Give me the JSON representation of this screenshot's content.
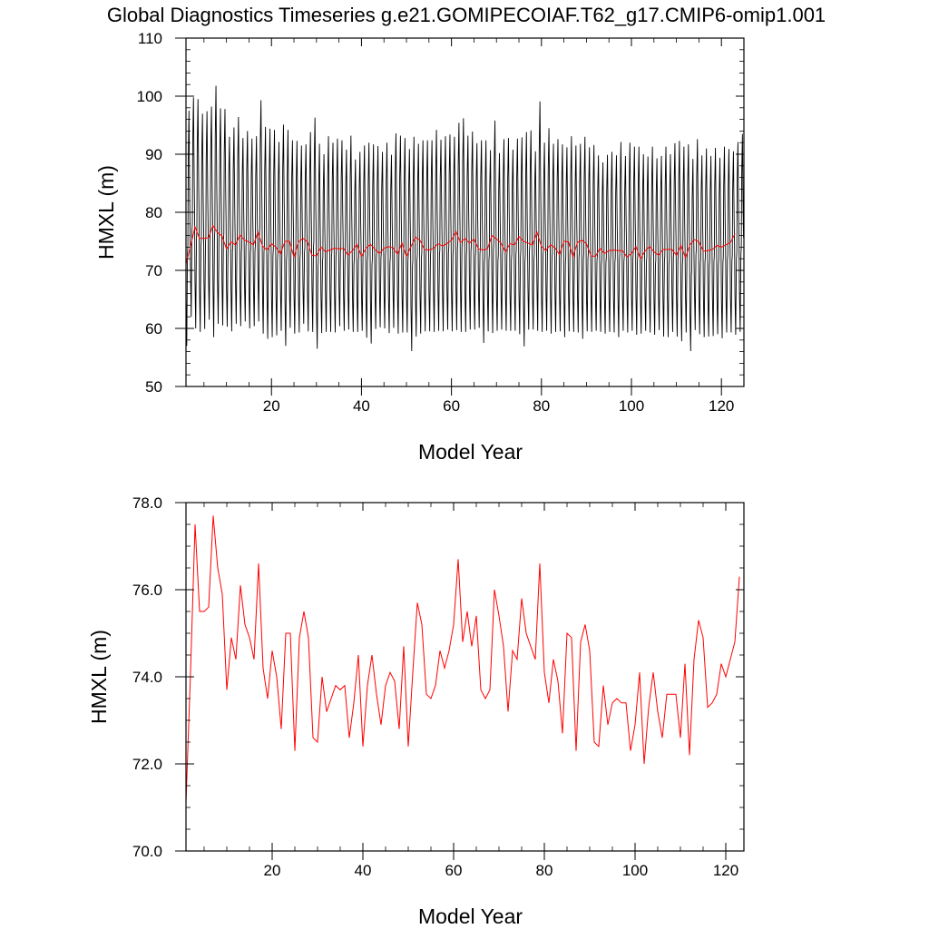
{
  "figure_title": "Global Diagnostics Timeseries g.e21.GOMIPECOIAF.T62_g17.CMIP6-omip1.001",
  "colors": {
    "monthly": "#000000",
    "annual": "#ff0000",
    "axes": "#000000",
    "background": "#ffffff"
  },
  "chart_data": [
    {
      "type": "line",
      "xlabel": "Model Year",
      "ylabel": "HMXL (m)",
      "xlim": [
        1,
        125
      ],
      "ylim": [
        50,
        110
      ],
      "xticks": [
        20,
        40,
        60,
        80,
        100,
        120
      ],
      "yticks": [
        50,
        60,
        70,
        80,
        90,
        100,
        110
      ],
      "ytick_labels": [
        "50",
        "60",
        "70",
        "80",
        "90",
        "100",
        "110"
      ],
      "grid": false,
      "series": [
        {
          "kind": "monthly",
          "color": "#000000",
          "note_resolution": "12 values per year, 124 years",
          "annual_max": [
            97.5,
            99.8,
            99.5,
            97.0,
            97.4,
            98.2,
            101.8,
            97.9,
            97.8,
            93.0,
            94.6,
            96.4,
            92.8,
            94.0,
            92.7,
            93.1,
            99.3,
            94.7,
            94.4,
            94.2,
            92.1,
            95.1,
            94.2,
            92.4,
            92.3,
            91.5,
            91.7,
            93.8,
            96.3,
            91.8,
            90.0,
            93.1,
            92.0,
            92.7,
            92.4,
            90.8,
            93.2,
            89.1,
            90.4,
            91.5,
            92.0,
            91.7,
            91.4,
            90.4,
            92.0,
            89.9,
            93.6,
            93.2,
            92.8,
            90.9,
            93.0,
            91.8,
            92.4,
            92.4,
            92.4,
            94.2,
            92.5,
            93.1,
            93.4,
            93.0,
            95.4,
            96.2,
            93.2,
            93.9,
            91.9,
            92.4,
            92.4,
            90.7,
            95.8,
            90.2,
            92.6,
            92.8,
            90.8,
            92.7,
            92.9,
            93.8,
            94.1,
            90.5,
            99.1,
            92.0,
            94.5,
            91.8,
            92.6,
            91.7,
            91.2,
            93.1,
            91.5,
            91.8,
            93.0,
            91.2,
            91.6,
            89.8,
            88.6,
            89.9,
            90.4,
            89.8,
            92.1,
            89.7,
            92.0,
            91.3,
            91.3,
            90.0,
            89.6,
            91.3,
            89.3,
            89.7,
            91.3,
            90.0,
            91.9,
            92.3,
            91.3,
            91.7,
            89.2,
            92.6,
            89.8,
            91.0,
            89.7,
            91.1,
            89.4,
            91.3,
            90.9,
            90.5,
            92.1,
            93.5
          ],
          "annual_min": [
            57.0,
            62.0,
            60.0,
            59.4,
            59.9,
            61.5,
            58.5,
            60.8,
            60.5,
            60.3,
            59.5,
            60.8,
            60.4,
            61.2,
            60.0,
            60.4,
            61.2,
            59.1,
            58.2,
            58.5,
            58.8,
            59.6,
            57.0,
            60.1,
            59.1,
            59.3,
            60.8,
            59.5,
            59.4,
            56.5,
            59.2,
            59.4,
            59.4,
            59.3,
            60.4,
            59.6,
            59.8,
            59.4,
            59.4,
            59.6,
            58.4,
            57.4,
            59.9,
            60.2,
            60.0,
            59.2,
            60.1,
            59.1,
            59.3,
            59.3,
            56.1,
            58.6,
            59.1,
            59.5,
            59.5,
            59.4,
            59.6,
            59.5,
            59.8,
            59.5,
            59.7,
            59.4,
            59.4,
            59.8,
            59.8,
            60.1,
            57.5,
            59.5,
            59.2,
            59.6,
            59.8,
            59.6,
            59.6,
            59.6,
            59.0,
            56.9,
            59.8,
            59.8,
            59.6,
            59.4,
            59.6,
            59.1,
            59.4,
            59.5,
            58.5,
            59.5,
            59.4,
            59.3,
            58.2,
            59.5,
            59.4,
            59.6,
            59.4,
            59.1,
            59.4,
            59.3,
            58.5,
            59.6,
            59.3,
            59.6,
            58.9,
            59.1,
            59.6,
            59.3,
            58.9,
            59.7,
            58.6,
            58.5,
            59.4,
            58.6,
            57.8,
            59.3,
            56.1,
            59.7,
            59.0,
            58.5,
            58.6,
            58.7,
            59.0,
            58.3,
            59.3,
            59.3,
            58.9,
            59.4
          ]
        },
        {
          "kind": "annual",
          "color": "#ff0000",
          "note_resolution": "1 value per year, years 1-124"
        }
      ]
    },
    {
      "type": "line",
      "xlabel": "Model Year",
      "ylabel": "HMXL (m)",
      "xlim": [
        1,
        124
      ],
      "ylim": [
        70,
        78
      ],
      "xticks": [
        20,
        40,
        60,
        80,
        100,
        120
      ],
      "yticks": [
        70,
        72,
        74,
        76,
        78
      ],
      "ytick_labels": [
        "70.0",
        "72.0",
        "74.0",
        "76.0",
        "78.0"
      ],
      "grid": false,
      "series": [
        {
          "kind": "annual",
          "color": "#ff0000",
          "x_start": 1,
          "values": [
            71.1,
            74.1,
            77.5,
            75.5,
            75.5,
            75.6,
            77.7,
            76.5,
            75.9,
            73.7,
            74.9,
            74.4,
            76.1,
            75.2,
            74.9,
            74.4,
            76.6,
            74.2,
            73.5,
            74.6,
            74.0,
            72.8,
            75.0,
            75.0,
            72.3,
            74.9,
            75.5,
            74.9,
            72.6,
            72.5,
            74.0,
            73.2,
            73.5,
            73.8,
            73.7,
            73.8,
            72.6,
            73.4,
            74.5,
            72.4,
            73.8,
            74.5,
            73.6,
            72.9,
            73.8,
            74.1,
            73.9,
            72.8,
            74.7,
            72.4,
            74.1,
            75.7,
            75.2,
            73.6,
            73.5,
            73.8,
            74.6,
            74.2,
            74.6,
            75.2,
            76.7,
            74.8,
            75.5,
            74.7,
            75.4,
            73.7,
            73.5,
            73.7,
            76.0,
            75.4,
            74.7,
            73.2,
            74.6,
            74.4,
            75.8,
            75.0,
            74.7,
            74.4,
            76.6,
            74.1,
            73.4,
            74.4,
            73.9,
            72.7,
            75.0,
            74.9,
            72.3,
            74.8,
            75.2,
            74.6,
            72.5,
            72.4,
            73.8,
            72.9,
            73.4,
            73.5,
            73.4,
            73.4,
            72.3,
            72.9,
            74.1,
            72.0,
            73.3,
            74.1,
            73.2,
            72.6,
            73.6,
            73.6,
            73.6,
            72.6,
            74.3,
            72.2,
            74.4,
            75.3,
            74.9,
            73.3,
            73.4,
            73.6,
            74.3,
            74.0,
            74.4,
            74.8,
            76.3
          ]
        }
      ]
    }
  ]
}
